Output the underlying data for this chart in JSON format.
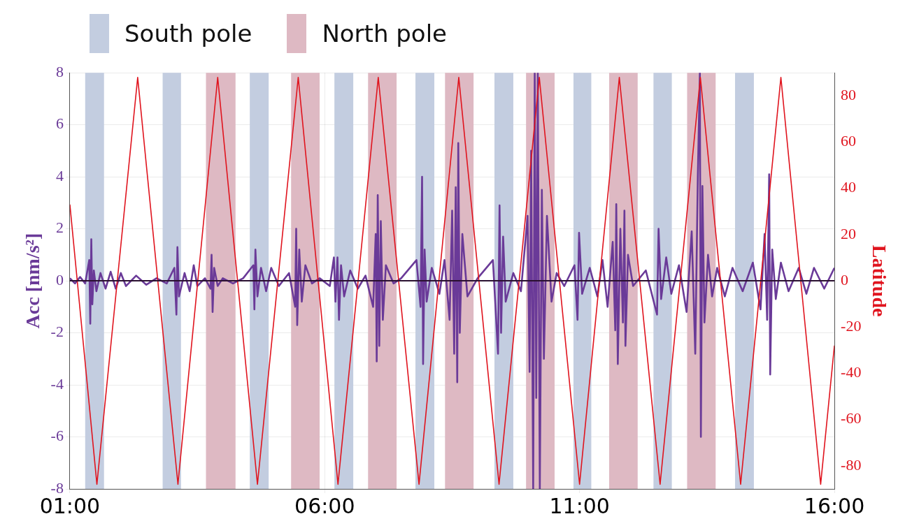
{
  "chart_data": {
    "type": "line",
    "ylabel": "Acc [nm/s²]",
    "y2label": "Latitude",
    "xlim": [
      1,
      16
    ],
    "xticks": [
      {
        "value": 1,
        "label": "01:00"
      },
      {
        "value": 6,
        "label": "06:00"
      },
      {
        "value": 11,
        "label": "11:00"
      },
      {
        "value": 16,
        "label": "16:00"
      }
    ],
    "ylim": [
      -8,
      8
    ],
    "yticks": [
      -8,
      -6,
      -4,
      -2,
      0,
      2,
      4,
      6,
      8
    ],
    "y2lim": [
      -90,
      90
    ],
    "y2ticks": [
      -80,
      -60,
      -40,
      -20,
      0,
      20,
      40,
      60,
      80
    ],
    "grid": true,
    "legend": "top",
    "marker": "none",
    "series": [
      {
        "color": "#6a3a98",
        "x": [
          1.0,
          1.1,
          1.2,
          1.3,
          1.38,
          1.4,
          1.42,
          1.44,
          1.47,
          1.52,
          1.6,
          1.7,
          1.8,
          1.9,
          2.0,
          2.1,
          2.3,
          2.5,
          2.7,
          2.9,
          3.05,
          3.09,
          3.11,
          3.14,
          3.25,
          3.35,
          3.43,
          3.5,
          3.65,
          3.76,
          3.78,
          3.8,
          3.83,
          3.9,
          4.0,
          4.2,
          4.4,
          4.6,
          4.62,
          4.64,
          4.68,
          4.75,
          4.85,
          4.95,
          5.1,
          5.3,
          5.42,
          5.44,
          5.46,
          5.5,
          5.55,
          5.62,
          5.75,
          5.9,
          6.1,
          6.18,
          6.21,
          6.25,
          6.28,
          6.32,
          6.38,
          6.5,
          6.65,
          6.8,
          6.95,
          7.0,
          7.02,
          7.04,
          7.07,
          7.1,
          7.14,
          7.2,
          7.35,
          7.5,
          7.8,
          7.88,
          7.91,
          7.93,
          7.96,
          8.0,
          8.1,
          8.25,
          8.35,
          8.45,
          8.5,
          8.54,
          8.57,
          8.6,
          8.62,
          8.65,
          8.7,
          8.8,
          9.0,
          9.3,
          9.4,
          9.43,
          9.46,
          9.5,
          9.55,
          9.7,
          9.85,
          9.98,
          10.02,
          10.05,
          10.09,
          10.12,
          10.15,
          10.18,
          10.22,
          10.26,
          10.3,
          10.36,
          10.45,
          10.55,
          10.7,
          10.9,
          10.96,
          10.99,
          11.05,
          11.2,
          11.35,
          11.45,
          11.55,
          11.65,
          11.7,
          11.72,
          11.75,
          11.8,
          11.85,
          11.88,
          11.9,
          11.95,
          12.05,
          12.3,
          12.52,
          12.55,
          12.6,
          12.7,
          12.8,
          12.95,
          13.1,
          13.2,
          13.27,
          13.32,
          13.36,
          13.38,
          13.41,
          13.45,
          13.52,
          13.6,
          13.7,
          13.85,
          14.0,
          14.2,
          14.4,
          14.55,
          14.63,
          14.68,
          14.72,
          14.74,
          14.78,
          14.85,
          14.95,
          15.1,
          15.3,
          15.45,
          15.6,
          15.8,
          16.0
        ],
        "values": [
          0.1,
          -0.1,
          0.15,
          -0.1,
          0.8,
          -1.65,
          1.6,
          -0.9,
          0.4,
          -0.4,
          0.3,
          -0.3,
          0.35,
          -0.3,
          0.3,
          -0.2,
          0.2,
          -0.15,
          0.1,
          -0.1,
          0.5,
          -1.3,
          1.3,
          -0.6,
          0.3,
          -0.4,
          0.6,
          -0.2,
          0.1,
          -0.3,
          1.0,
          -1.2,
          0.5,
          -0.2,
          0.1,
          -0.1,
          0.1,
          0.6,
          -1.1,
          1.2,
          -0.6,
          0.5,
          -0.4,
          0.5,
          -0.2,
          0.3,
          -1.0,
          2.0,
          -1.7,
          1.2,
          -0.8,
          0.6,
          -0.1,
          0.1,
          -0.2,
          0.9,
          -0.8,
          0.9,
          -1.5,
          0.6,
          -0.6,
          0.4,
          -0.3,
          0.2,
          -1.0,
          1.8,
          -3.1,
          3.3,
          -2.5,
          2.3,
          -1.5,
          0.6,
          -0.1,
          0.1,
          0.8,
          -1.0,
          4.0,
          -3.2,
          1.2,
          -0.8,
          0.5,
          -0.5,
          0.8,
          -1.5,
          2.7,
          -2.8,
          3.6,
          -3.9,
          5.3,
          -2.0,
          1.8,
          -0.6,
          0.1,
          0.8,
          -2.8,
          2.9,
          -2.0,
          1.7,
          -0.8,
          0.3,
          -0.4,
          2.5,
          -3.5,
          5.0,
          -8,
          8,
          -4.5,
          8,
          -8,
          3.5,
          -3.0,
          2.5,
          -0.8,
          0.3,
          -0.2,
          0.6,
          -1.5,
          1.85,
          -0.5,
          0.5,
          -0.6,
          0.8,
          -1.0,
          1.5,
          -1.9,
          2.95,
          -3.2,
          2.0,
          -1.6,
          2.7,
          -2.5,
          1.0,
          -0.2,
          0.4,
          -1.3,
          2.0,
          -0.7,
          0.9,
          -0.5,
          0.6,
          -1.2,
          1.9,
          -2.8,
          4.0,
          8,
          -6.0,
          3.65,
          -1.6,
          1.0,
          -0.6,
          0.5,
          -0.6,
          0.5,
          -0.4,
          0.7,
          -1.1,
          1.8,
          -1.5,
          4.1,
          -3.6,
          1.2,
          -0.7,
          0.7,
          -0.4,
          0.5,
          -0.5,
          0.5,
          -0.3,
          0.5
        ]
      },
      {
        "color": "#e0141e",
        "axis": "y2",
        "x": [
          1.0,
          1.53,
          2.33,
          3.12,
          3.9,
          4.68,
          5.48,
          6.26,
          7.05,
          7.85,
          8.63,
          9.42,
          10.21,
          11.0,
          11.78,
          12.58,
          13.37,
          14.16,
          14.95,
          15.73,
          16.0
        ],
        "values": [
          33,
          -88,
          88,
          -88,
          88,
          -88,
          88,
          -88,
          88,
          -88,
          88,
          -88,
          88,
          -88,
          88,
          -88,
          88,
          -88,
          88,
          -88,
          -28
        ]
      }
    ],
    "ref_lines": [
      {
        "axis": "y",
        "value": 0,
        "color": "#2a1030"
      }
    ],
    "bands": [
      {
        "axis": "x",
        "from": 1.3,
        "to": 1.67,
        "label": "South pole",
        "color": "#c3cde0"
      },
      {
        "axis": "x",
        "from": 2.82,
        "to": 3.18,
        "color": "#c3cde0"
      },
      {
        "axis": "x",
        "from": 3.67,
        "to": 4.25,
        "label": "North pole",
        "color": "#deb9c3"
      },
      {
        "axis": "x",
        "from": 4.53,
        "to": 4.9,
        "color": "#c3cde0"
      },
      {
        "axis": "x",
        "from": 5.34,
        "to": 5.9,
        "color": "#deb9c3"
      },
      {
        "axis": "x",
        "from": 6.19,
        "to": 6.56,
        "color": "#c3cde0"
      },
      {
        "axis": "x",
        "from": 6.85,
        "to": 7.41,
        "color": "#deb9c3"
      },
      {
        "axis": "x",
        "from": 7.78,
        "to": 8.15,
        "color": "#c3cde0"
      },
      {
        "axis": "x",
        "from": 8.36,
        "to": 8.92,
        "color": "#deb9c3"
      },
      {
        "axis": "x",
        "from": 9.33,
        "to": 9.7,
        "color": "#c3cde0"
      },
      {
        "axis": "x",
        "from": 9.95,
        "to": 10.51,
        "color": "#deb9c3"
      },
      {
        "axis": "x",
        "from": 10.88,
        "to": 11.23,
        "color": "#c3cde0"
      },
      {
        "axis": "x",
        "from": 11.58,
        "to": 12.14,
        "color": "#deb9c3"
      },
      {
        "axis": "x",
        "from": 12.45,
        "to": 12.81,
        "color": "#c3cde0"
      },
      {
        "axis": "x",
        "from": 13.11,
        "to": 13.67,
        "color": "#deb9c3"
      },
      {
        "axis": "x",
        "from": 14.05,
        "to": 14.42,
        "color": "#c3cde0"
      }
    ]
  }
}
